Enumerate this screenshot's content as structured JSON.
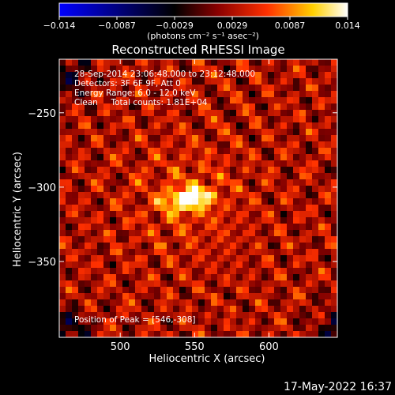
{
  "chart_data": {
    "type": "heatmap",
    "title": "Reconstructed RHESSI Image",
    "xlabel": "Heliocentric X (arcsec)",
    "ylabel": "Heliocentric Y (arcsec)",
    "xlim": [
      459,
      646
    ],
    "ylim": [
      -401,
      -214
    ],
    "x_ticks": [
      500,
      550,
      600
    ],
    "y_ticks": [
      -250,
      -300,
      -350
    ],
    "x_tick_labels": [
      "500",
      "550",
      "600"
    ],
    "y_tick_labels": [
      "−250",
      "−300",
      "−350"
    ],
    "colorbar": {
      "range": [
        -0.014,
        0.014
      ],
      "tick_labels": [
        "−0.014",
        "−0.0087",
        "−0.0029",
        "0.0029",
        "0.0087",
        "0.014"
      ],
      "units": "(photons cm⁻² s⁻¹ asec⁻²)",
      "colors": [
        "#0000ff",
        "#000000",
        "#7a0000",
        "#ff3000",
        "#ffd000",
        "#ffffff"
      ]
    },
    "annotations": [
      "28-Sep-2014 23:06:48.000 to 23:12:48.000",
      "Detectors: 3F 6F 9F, Att 0",
      "Energy Range: 6.0 - 12.0 keV",
      "Clean     Total counts: 1.81E+04"
    ],
    "peak_label": "Position of Peak = [546,-308]",
    "peak": [
      546,
      -308
    ],
    "background_noise_level": 0.003,
    "negative_regions": [
      [
        465,
        -395
      ],
      [
        645,
        -395
      ],
      [
        465,
        -225
      ]
    ]
  },
  "timestamp": "17-May-2022 16:37"
}
